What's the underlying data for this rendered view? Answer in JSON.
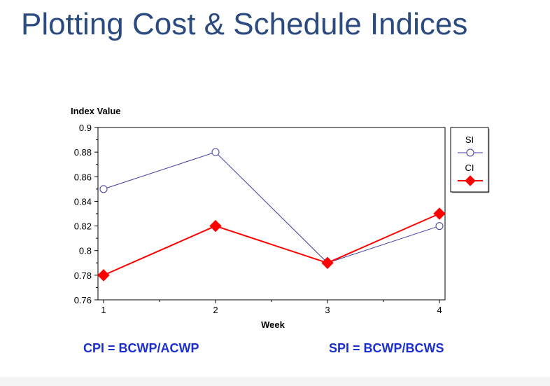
{
  "slide": {
    "title": "Plotting Cost & Schedule Indices",
    "formula_left": "CPI = BCWP/ACWP",
    "formula_right": "SPI = BCWP/BCWS"
  },
  "colors": {
    "title": "#2b4a80",
    "formula": "#1c2fd0",
    "si_series": "#3a3aa0",
    "ci_series": "#ff0000"
  },
  "chart_data": {
    "type": "line",
    "title": "",
    "xlabel": "Week",
    "ylabel": "Index Value",
    "x": [
      1,
      2,
      3,
      4
    ],
    "x_ticks": [
      "1",
      "2",
      "3",
      "4"
    ],
    "xlim": [
      0.95,
      4.05
    ],
    "ylim": [
      0.76,
      0.9
    ],
    "y_ticks": [
      "0.9",
      "0.88",
      "0.86",
      "0.84",
      "0.82",
      "0.8",
      "0.78",
      "0.76"
    ],
    "y_tick_values": [
      0.9,
      0.88,
      0.86,
      0.84,
      0.82,
      0.8,
      0.78,
      0.76
    ],
    "grid": false,
    "legend": "right",
    "series": [
      {
        "name": "SI",
        "values": [
          0.85,
          0.88,
          0.79,
          0.82
        ],
        "marker": "open-circle",
        "color": "#3a3aa0"
      },
      {
        "name": "CI",
        "values": [
          0.78,
          0.82,
          0.79,
          0.83
        ],
        "marker": "filled-diamond",
        "color": "#ff0000"
      }
    ]
  }
}
